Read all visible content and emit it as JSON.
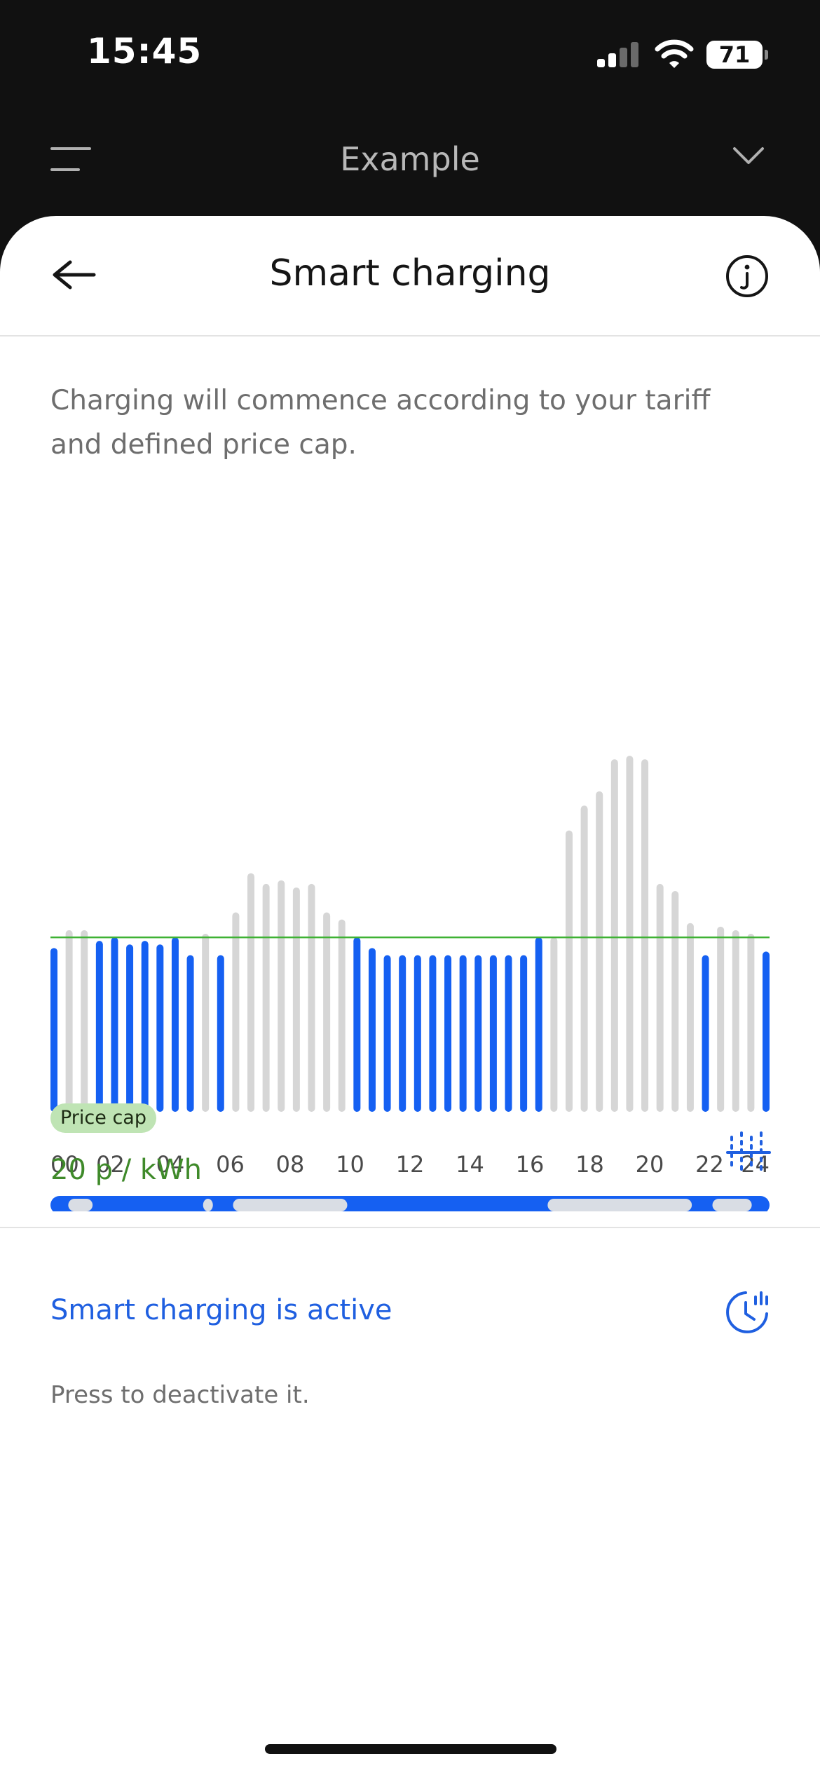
{
  "status_bar": {
    "time": "15:45",
    "battery": "71"
  },
  "nav": {
    "title": "Example"
  },
  "header": {
    "title": "Smart charging"
  },
  "description": "Charging will commence according to your tariff and defined price cap.",
  "chart_data": {
    "type": "bar",
    "x_tick_labels": [
      "00",
      "02",
      "04",
      "06",
      "08",
      "10",
      "12",
      "14",
      "16",
      "18",
      "20",
      "22",
      "24"
    ],
    "price_cap_relative": 0.49,
    "prices_relative": [
      0.46,
      0.51,
      0.51,
      0.48,
      0.49,
      0.47,
      0.48,
      0.47,
      0.49,
      0.44,
      0.5,
      0.44,
      0.56,
      0.67,
      0.64,
      0.65,
      0.63,
      0.64,
      0.56,
      0.54,
      0.49,
      0.46,
      0.44,
      0.44,
      0.44,
      0.44,
      0.44,
      0.44,
      0.44,
      0.44,
      0.44,
      0.44,
      0.49,
      0.49,
      0.79,
      0.86,
      0.9,
      0.99,
      1.0,
      0.99,
      0.64,
      0.62,
      0.53,
      0.44,
      0.52,
      0.51,
      0.5,
      0.45
    ],
    "charging": [
      true,
      false,
      false,
      true,
      true,
      true,
      true,
      true,
      true,
      true,
      false,
      true,
      false,
      false,
      false,
      false,
      false,
      false,
      false,
      false,
      true,
      true,
      true,
      true,
      true,
      true,
      true,
      true,
      true,
      true,
      true,
      true,
      true,
      false,
      false,
      false,
      false,
      false,
      false,
      false,
      false,
      false,
      false,
      true,
      false,
      false,
      false,
      true
    ],
    "colors": {
      "charging": "#1560f2",
      "idle": "#d6d6d6",
      "price_cap_line": "#3fb234"
    }
  },
  "price_cap": {
    "label": "Price cap",
    "value": "20 p / kWh"
  },
  "smart_charging": {
    "status": "Smart charging is active",
    "hint": "Press to deactivate it."
  }
}
